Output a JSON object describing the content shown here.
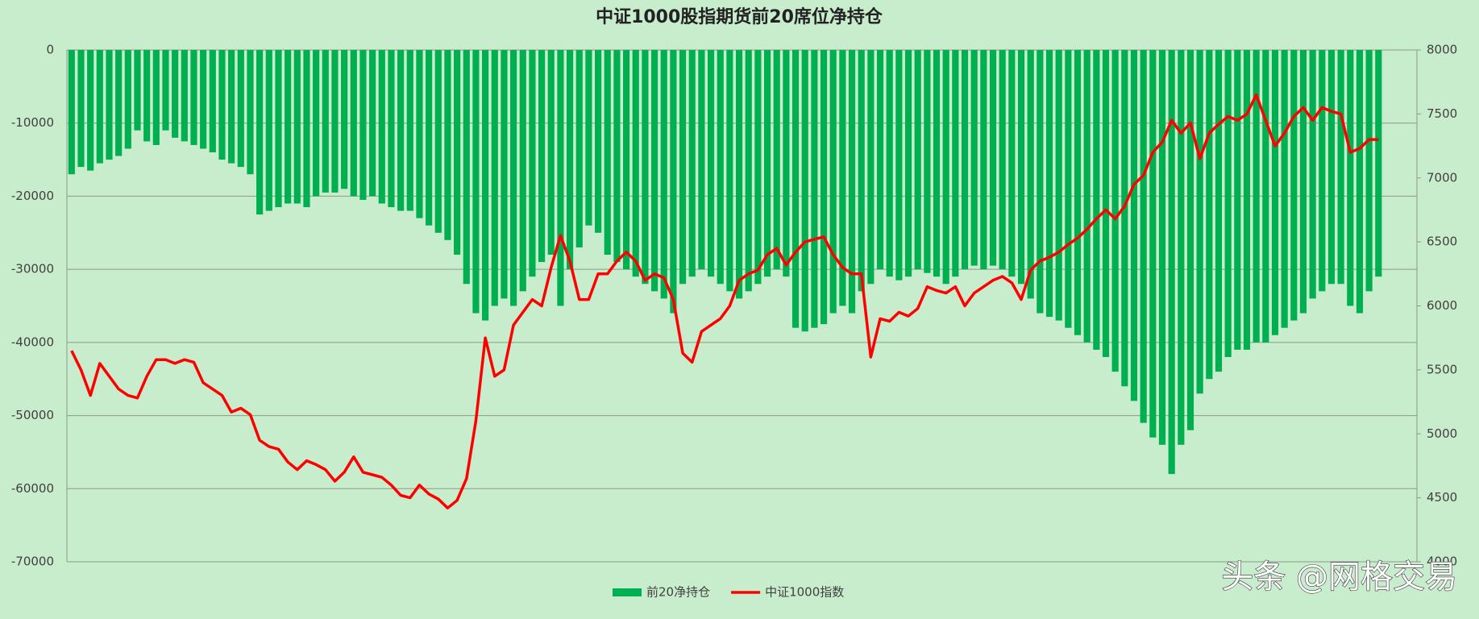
{
  "chart_data": {
    "type": "bar-line",
    "title": "中证1000股指期货前20席位净持仓",
    "series": [
      {
        "name": "前20净持仓",
        "type": "bar",
        "color": "#00b050",
        "values": [
          -17000,
          -16000,
          -16500,
          -15500,
          -15000,
          -14500,
          -13500,
          -11000,
          -12500,
          -13000,
          -11000,
          -12000,
          -12500,
          -13000,
          -13500,
          -14000,
          -15000,
          -15500,
          -16000,
          -17000,
          -22500,
          -22000,
          -21500,
          -21000,
          -21000,
          -21500,
          -20000,
          -19500,
          -19500,
          -19000,
          -20000,
          -20500,
          -20000,
          -21000,
          -21500,
          -22000,
          -22000,
          -23000,
          -24000,
          -25000,
          -26000,
          -28000,
          -32000,
          -36000,
          -37000,
          -35000,
          -34000,
          -35000,
          -33000,
          -31000,
          -29000,
          -28000,
          -35000,
          -30000,
          -27000,
          -24000,
          -25000,
          -28000,
          -29000,
          -30000,
          -31000,
          -32000,
          -33000,
          -34000,
          -36000,
          -32000,
          -31000,
          -30000,
          -31000,
          -32000,
          -33000,
          -34000,
          -33000,
          -32000,
          -31000,
          -30000,
          -31000,
          -38000,
          -38500,
          -38000,
          -37500,
          -36000,
          -35000,
          -36000,
          -33000,
          -32000,
          -30000,
          -31000,
          -31500,
          -31000,
          -30000,
          -30500,
          -31000,
          -32000,
          -31000,
          -30000,
          -29500,
          -30000,
          -29500,
          -30000,
          -31000,
          -32000,
          -34000,
          -36000,
          -36500,
          -37000,
          -38000,
          -39000,
          -40000,
          -41000,
          -42000,
          -44000,
          -46000,
          -48000,
          -51000,
          -53000,
          -54000,
          -58000,
          -54000,
          -52000,
          -47000,
          -45000,
          -44000,
          -42000,
          -41000,
          -41000,
          -40000,
          -40000,
          -39000,
          -38000,
          -37000,
          -36000,
          -34000,
          -33000,
          -32000,
          -32000,
          -35000,
          -36000,
          -33000,
          -31000
        ]
      },
      {
        "name": "中证1000指数",
        "type": "line",
        "axis": "y2",
        "color": "#ff0000",
        "values": [
          5650,
          5500,
          5300,
          5550,
          5450,
          5350,
          5300,
          5280,
          5450,
          5580,
          5580,
          5550,
          5580,
          5560,
          5400,
          5350,
          5300,
          5170,
          5200,
          5150,
          4950,
          4900,
          4880,
          4780,
          4720,
          4790,
          4760,
          4720,
          4630,
          4700,
          4820,
          4700,
          4680,
          4660,
          4600,
          4520,
          4500,
          4600,
          4530,
          4490,
          4420,
          4480,
          4650,
          5100,
          5750,
          5450,
          5500,
          5850,
          5950,
          6050,
          6000,
          6300,
          6550,
          6350,
          6050,
          6050,
          6250,
          6250,
          6350,
          6420,
          6350,
          6200,
          6250,
          6220,
          6050,
          5630,
          5560,
          5800,
          5850,
          5900,
          6000,
          6200,
          6250,
          6280,
          6400,
          6450,
          6320,
          6420,
          6500,
          6520,
          6540,
          6400,
          6300,
          6250,
          6250,
          5600,
          5900,
          5880,
          5950,
          5920,
          5980,
          6150,
          6120,
          6100,
          6150,
          6000,
          6100,
          6150,
          6200,
          6230,
          6180,
          6050,
          6280,
          6350,
          6380,
          6420,
          6480,
          6530,
          6600,
          6680,
          6750,
          6680,
          6780,
          6950,
          7020,
          7200,
          7280,
          7450,
          7350,
          7430,
          7150,
          7350,
          7420,
          7480,
          7450,
          7500,
          7650,
          7450,
          7250,
          7350,
          7480,
          7550,
          7450,
          7550,
          7520,
          7500,
          7200,
          7230,
          7300,
          7300
        ]
      }
    ],
    "ylim": [
      -70000,
      0
    ],
    "yticks": [
      0,
      -10000,
      -20000,
      -30000,
      -40000,
      -50000,
      -60000,
      -70000
    ],
    "y2lim": [
      4000,
      8000
    ],
    "y2ticks": [
      8000,
      7500,
      7000,
      6500,
      6000,
      5500,
      5000,
      4500,
      4000
    ],
    "grid": true,
    "legend": "bottom",
    "watermark": "头条 @网格交易"
  }
}
